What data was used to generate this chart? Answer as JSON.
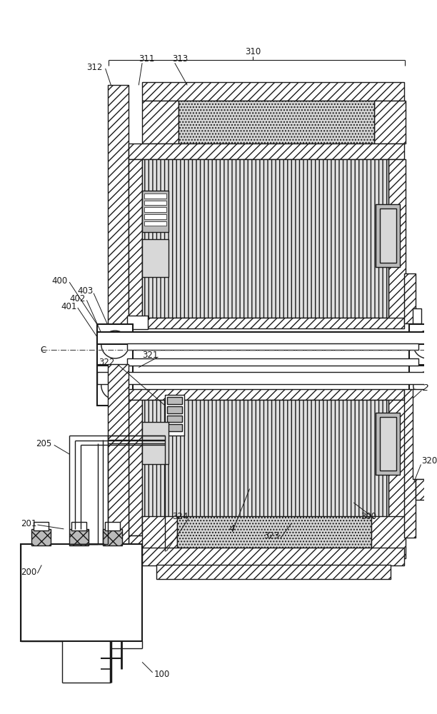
{
  "bg_color": "#ffffff",
  "line_color": "#1a1a1a",
  "fig_width": 6.12,
  "fig_height": 10.0,
  "dpi": 100,
  "lw": 1.0,
  "lw2": 1.5,
  "lw3": 0.7,
  "hatch_diag": "///",
  "hatch_dot": "....",
  "hatch_vert": "|||",
  "hatch_cross": "xx",
  "gray_light": "#d8d8d8",
  "gray_med": "#bbbbbb",
  "gray_dark": "#999999"
}
